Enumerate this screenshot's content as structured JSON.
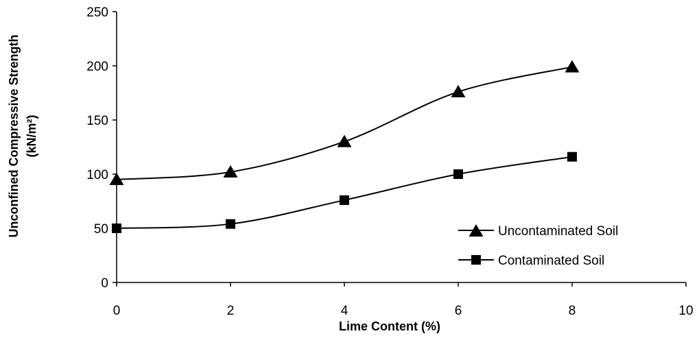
{
  "chart_data": {
    "type": "line",
    "title": "",
    "xlabel": "Lime Content (%)",
    "ylabel_line1": "Unconfined Compressive Strength",
    "ylabel_line2": "(kN/m²)",
    "xlim": [
      0,
      10
    ],
    "ylim": [
      0,
      250
    ],
    "xticks": [
      0,
      2,
      4,
      6,
      8,
      10
    ],
    "yticks": [
      0,
      50,
      100,
      150,
      200,
      250
    ],
    "grid": false,
    "smooth": true,
    "legend_position": "right",
    "series": [
      {
        "name": "Uncontaminated Soil",
        "marker": "triangle",
        "color": "#000000",
        "x": [
          0,
          2,
          4,
          6,
          8
        ],
        "y": [
          95,
          102,
          130,
          176,
          199
        ]
      },
      {
        "name": "Contaminated Soil",
        "marker": "square",
        "color": "#000000",
        "x": [
          0,
          2,
          4,
          6,
          8
        ],
        "y": [
          50,
          54,
          76,
          100,
          116
        ]
      }
    ]
  }
}
